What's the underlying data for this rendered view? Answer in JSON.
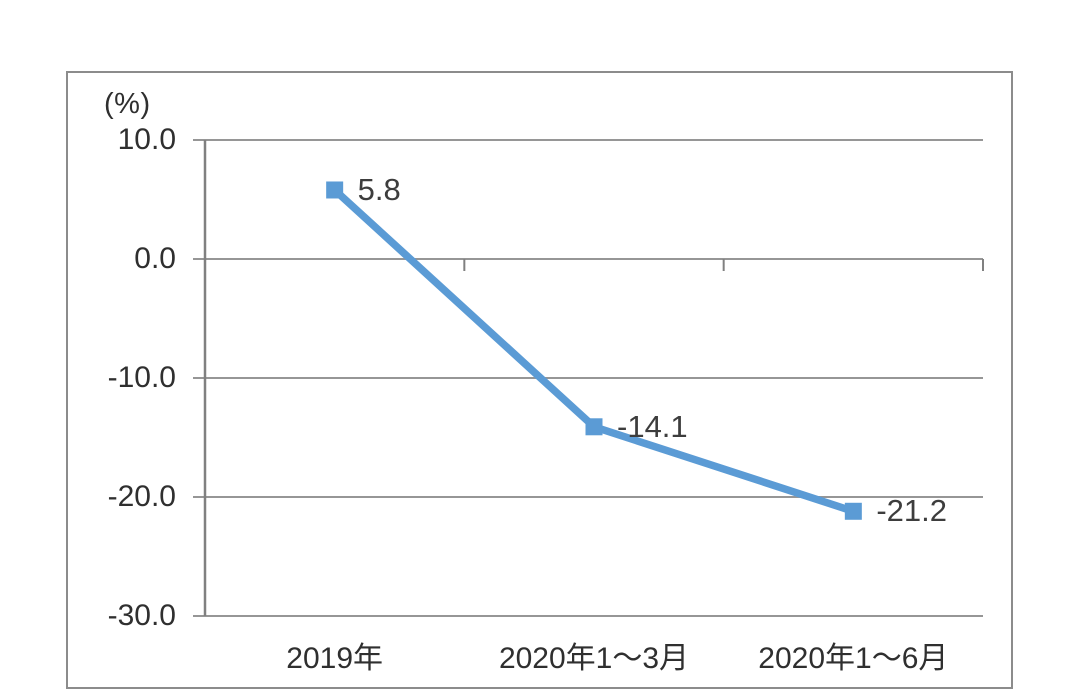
{
  "chart_data": {
    "type": "line",
    "unit_label": "(%)",
    "categories": [
      "2019年",
      "2020年1～3月",
      "2020年1～6月"
    ],
    "values": [
      5.8,
      -14.1,
      -21.2
    ],
    "point_labels": [
      "5.8",
      "-14.1",
      "-21.2"
    ],
    "y_ticks": [
      "10.0",
      "0.0",
      "-10.0",
      "-20.0",
      "-30.0"
    ],
    "y_tick_values": [
      10,
      0,
      -10,
      -20,
      -30
    ],
    "ylim": [
      -30,
      10
    ],
    "grid": true,
    "legend": "none",
    "marker": "square",
    "colors": {
      "series": "#5B9BD5",
      "gridline": "#969696",
      "axis": "#808080",
      "frame": "#8c8c8c",
      "text": "#2f2f2f",
      "point_label_text": "#3d3d3d"
    }
  }
}
